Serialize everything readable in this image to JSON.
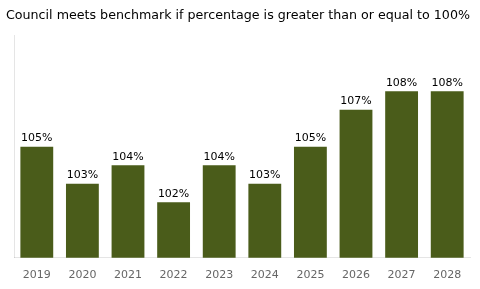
{
  "chart_data": {
    "type": "bar",
    "title": "Council meets benchmark if percentage is greater than or equal to 100%",
    "categories": [
      "2019",
      "2020",
      "2021",
      "2022",
      "2023",
      "2024",
      "2025",
      "2026",
      "2027",
      "2028"
    ],
    "values": [
      105,
      103,
      104,
      102,
      104,
      103,
      105,
      107,
      108,
      108
    ],
    "value_labels": [
      "105%",
      "103%",
      "104%",
      "102%",
      "104%",
      "103%",
      "105%",
      "107%",
      "108%",
      "108%"
    ],
    "color": "#4a5c1a",
    "ylim": [
      99,
      111
    ],
    "grid": false,
    "data_labels": true,
    "tick_labels": "x"
  }
}
